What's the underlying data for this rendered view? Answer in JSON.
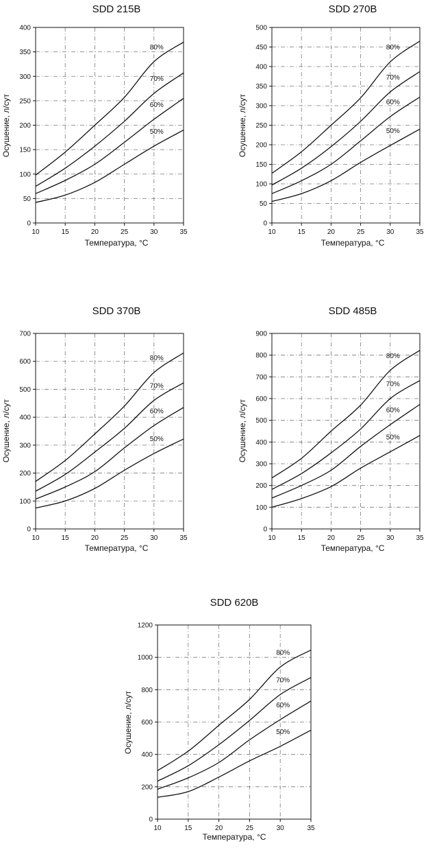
{
  "chart_data": [
    {
      "type": "line",
      "title": "SDD 215B",
      "xlabel": "Температура, °С",
      "ylabel": "Осушение, л/сут",
      "xlim": [
        10,
        35
      ],
      "ylim": [
        0,
        400
      ],
      "xticks": [
        10,
        15,
        20,
        25,
        30,
        35
      ],
      "yticks": [
        0,
        50,
        100,
        150,
        200,
        250,
        300,
        350,
        400
      ],
      "grid": true,
      "x": [
        10,
        15,
        20,
        25,
        30,
        35
      ],
      "series": [
        {
          "name": "80%",
          "values": [
            98,
            145,
            200,
            257,
            330,
            370
          ]
        },
        {
          "name": "70%",
          "values": [
            75,
            112,
            157,
            208,
            265,
            307
          ]
        },
        {
          "name": "60%",
          "values": [
            60,
            87,
            120,
            165,
            212,
            255
          ]
        },
        {
          "name": "50%",
          "values": [
            42,
            57,
            83,
            120,
            157,
            190
          ]
        }
      ]
    },
    {
      "type": "line",
      "title": "SDD 270B",
      "xlabel": "Температура, °С",
      "ylabel": "Осушение, л/сут",
      "xlim": [
        10,
        35
      ],
      "ylim": [
        0,
        500
      ],
      "xticks": [
        10,
        15,
        20,
        25,
        30,
        35
      ],
      "yticks": [
        0,
        50,
        100,
        150,
        200,
        250,
        300,
        350,
        400,
        450,
        500
      ],
      "grid": true,
      "x": [
        10,
        15,
        20,
        25,
        30,
        35
      ],
      "series": [
        {
          "name": "80%",
          "values": [
            127,
            182,
            250,
            320,
            412,
            465
          ]
        },
        {
          "name": "70%",
          "values": [
            97,
            140,
            195,
            260,
            335,
            387
          ]
        },
        {
          "name": "60%",
          "values": [
            75,
            108,
            150,
            210,
            272,
            322
          ]
        },
        {
          "name": "50%",
          "values": [
            55,
            75,
            108,
            155,
            198,
            240
          ]
        }
      ]
    },
    {
      "type": "line",
      "title": "SDD 370B",
      "xlabel": "Температура, °С",
      "ylabel": "Осушение, л/сут",
      "xlim": [
        10,
        35
      ],
      "ylim": [
        0,
        700
      ],
      "xticks": [
        10,
        15,
        20,
        25,
        30,
        35
      ],
      "yticks": [
        0,
        100,
        200,
        300,
        400,
        500,
        600,
        700
      ],
      "grid": true,
      "x": [
        10,
        15,
        20,
        25,
        30,
        35
      ],
      "series": [
        {
          "name": "80%",
          "values": [
            170,
            245,
            340,
            440,
            560,
            630
          ]
        },
        {
          "name": "70%",
          "values": [
            135,
            195,
            275,
            360,
            460,
            523
          ]
        },
        {
          "name": "60%",
          "values": [
            107,
            150,
            205,
            290,
            370,
            435
          ]
        },
        {
          "name": "50%",
          "values": [
            75,
            100,
            145,
            210,
            270,
            322
          ]
        }
      ]
    },
    {
      "type": "line",
      "title": "SDD 485B",
      "xlabel": "Температура, °С",
      "ylabel": "Осушение, л/сут",
      "xlim": [
        10,
        35
      ],
      "ylim": [
        0,
        900
      ],
      "xticks": [
        10,
        15,
        20,
        25,
        30,
        35
      ],
      "yticks": [
        0,
        100,
        200,
        300,
        400,
        500,
        600,
        700,
        800,
        900
      ],
      "grid": true,
      "x": [
        10,
        15,
        20,
        25,
        30,
        35
      ],
      "series": [
        {
          "name": "80%",
          "values": [
            235,
            325,
            450,
            570,
            730,
            822
          ]
        },
        {
          "name": "70%",
          "values": [
            182,
            255,
            350,
            460,
            600,
            683
          ]
        },
        {
          "name": "60%",
          "values": [
            142,
            200,
            270,
            380,
            480,
            573
          ]
        },
        {
          "name": "50%",
          "values": [
            100,
            140,
            195,
            280,
            355,
            430
          ]
        }
      ]
    },
    {
      "type": "line",
      "title": "SDD 620B",
      "xlabel": "Температура, °С",
      "ylabel": "Осушение, л/сут",
      "xlim": [
        10,
        35
      ],
      "ylim": [
        0,
        1200
      ],
      "xticks": [
        10,
        15,
        20,
        25,
        30,
        35
      ],
      "yticks": [
        0,
        200,
        400,
        600,
        800,
        1000,
        1200
      ],
      "grid": true,
      "x": [
        10,
        15,
        20,
        25,
        30,
        35
      ],
      "series": [
        {
          "name": "80%",
          "values": [
            300,
            420,
            580,
            740,
            940,
            1045
          ]
        },
        {
          "name": "70%",
          "values": [
            235,
            330,
            460,
            610,
            770,
            875
          ]
        },
        {
          "name": "60%",
          "values": [
            185,
            255,
            350,
            490,
            615,
            730
          ]
        },
        {
          "name": "50%",
          "values": [
            135,
            170,
            260,
            360,
            450,
            550
          ]
        }
      ]
    }
  ]
}
